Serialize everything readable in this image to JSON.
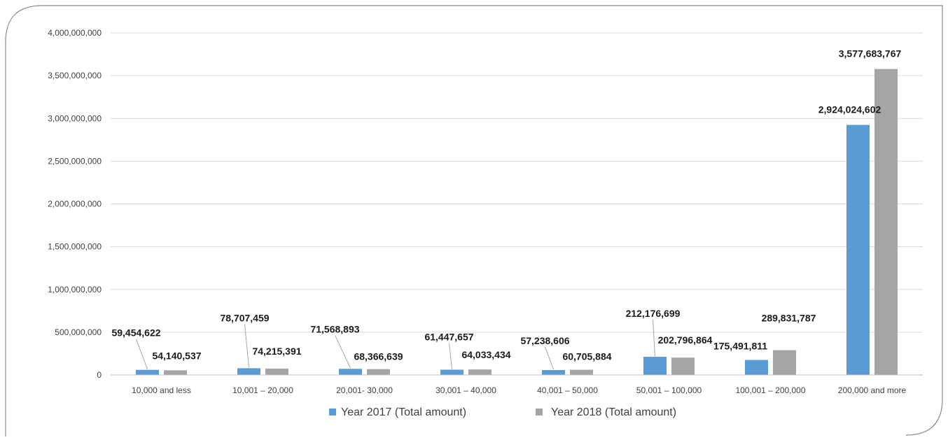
{
  "chart_data": {
    "type": "bar",
    "categories": [
      "10,000 and less",
      "10,001 – 20,000",
      "20,001- 30,000",
      "30,001 – 40,000",
      "40,001 – 50,000",
      "50,001 – 100,000",
      "100,001 – 200,000",
      "200,000 and more"
    ],
    "series": [
      {
        "name": "Year 2017 (Total amount)",
        "color": "#5b9bd5",
        "values": [
          59454622,
          78707459,
          71568893,
          61447657,
          57238606,
          212176699,
          175491811,
          2924024602
        ],
        "labels": [
          "59,454,622",
          "78,707,459",
          "71,568,893",
          "61,447,657",
          "57,238,606",
          "212,176,699",
          "175,491,811",
          "2,924,024,602"
        ]
      },
      {
        "name": "Year 2018 (Total amount)",
        "color": "#a5a5a5",
        "values": [
          54140537,
          74215391,
          68366639,
          64033434,
          60705884,
          202796864,
          289831787,
          3577683767
        ],
        "labels": [
          "54,140,537",
          "74,215,391",
          "68,366,639",
          "64,033,434",
          "60,705,884",
          "202,796,864",
          "289,831,787",
          "3,577,683,767"
        ]
      }
    ],
    "yticks": [
      {
        "value": 0,
        "label": "0"
      },
      {
        "value": 500000000,
        "label": "500,000,000"
      },
      {
        "value": 1000000000,
        "label": "1,000,000,000"
      },
      {
        "value": 1500000000,
        "label": "1,500,000,000"
      },
      {
        "value": 2000000000,
        "label": "2,000,000,000"
      },
      {
        "value": 2500000000,
        "label": "2,500,000,000"
      },
      {
        "value": 3000000000,
        "label": "3,000,000,000"
      },
      {
        "value": 3500000000,
        "label": "3,500,000,000"
      },
      {
        "value": 4000000000,
        "label": "4,000,000,000"
      }
    ],
    "ylim": [
      0,
      4000000000
    ],
    "grid": true,
    "legend": "bottom",
    "title": "",
    "xlabel": "",
    "ylabel": ""
  }
}
